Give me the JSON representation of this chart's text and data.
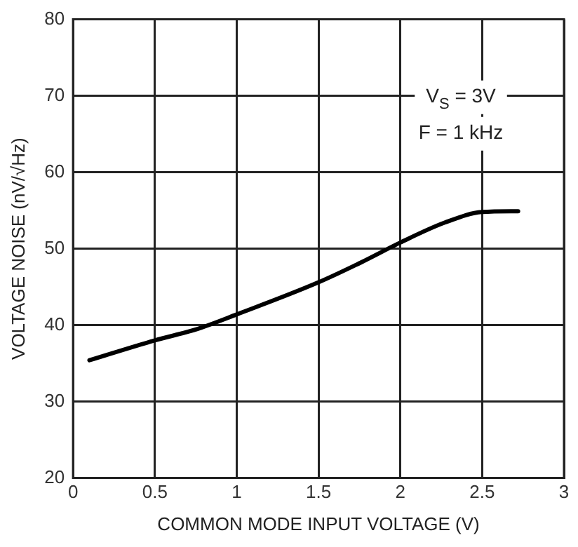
{
  "chart_data": {
    "type": "line",
    "xlabel": "COMMON MODE INPUT VOLTAGE (V)",
    "ylabel": "VOLTAGE NOISE (nV/√Hz)",
    "annotations": [
      "V$_{S}$ = 3V",
      "F = 1 kHz"
    ],
    "x": [
      0.1,
      0.5,
      0.76,
      1.0,
      1.5,
      1.76,
      2.0,
      2.27,
      2.5,
      2.72
    ],
    "series": [
      {
        "color": "#000000",
        "values": [
          35.4,
          38.0,
          39.5,
          41.4,
          45.6,
          48.2,
          50.8,
          53.4,
          54.8,
          54.9
        ]
      }
    ],
    "xlim": [
      0,
      3
    ],
    "xticks": [
      0,
      0.5,
      1,
      1.5,
      2,
      2.5,
      3
    ],
    "ylim": [
      20,
      80
    ],
    "yticks": [
      20,
      30,
      40,
      50,
      60,
      70,
      80
    ],
    "grid": true,
    "legend": false,
    "marker": "none",
    "line_style": "solid"
  }
}
